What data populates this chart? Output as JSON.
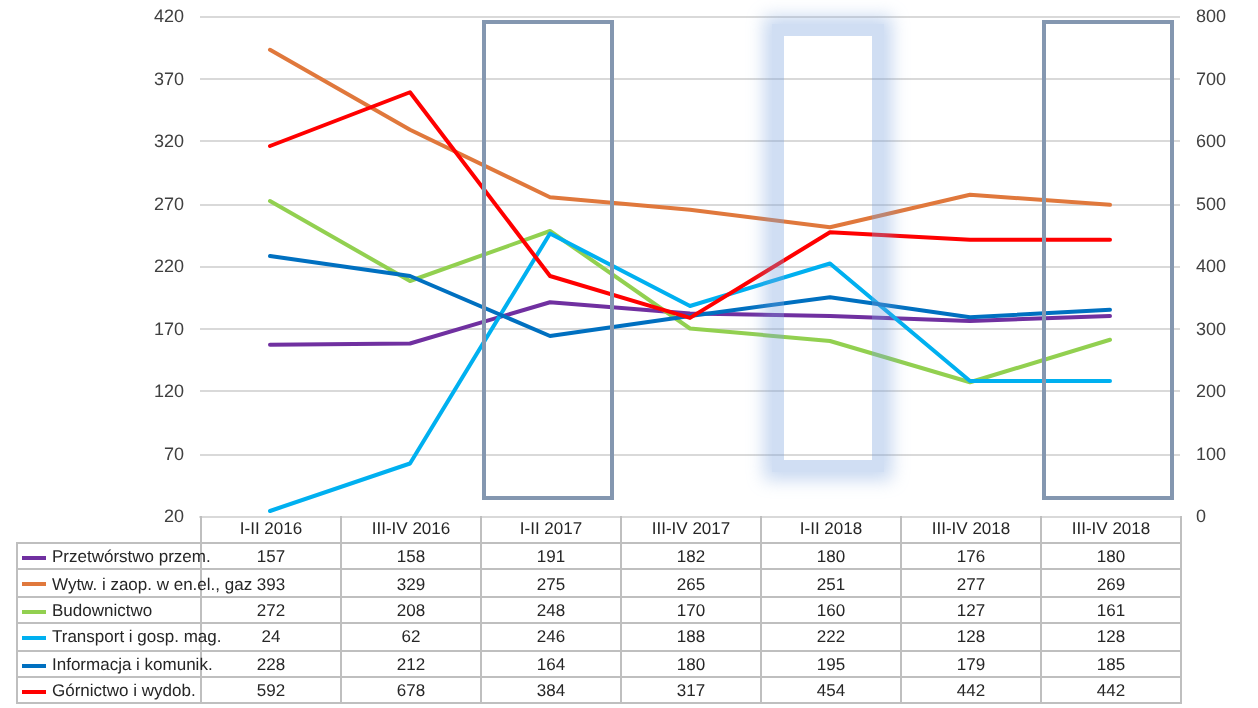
{
  "chart_data": {
    "type": "line",
    "categories": [
      "I-II 2016",
      "III-IV 2016",
      "I-II 2017",
      "III-IV 2017",
      "I-II 2018",
      "III-IV 2018",
      "III-IV 2018"
    ],
    "series": [
      {
        "name": "Przetwórstwo przem.",
        "color": "#7030a0",
        "values": [
          157,
          158,
          191,
          182,
          180,
          176,
          180
        ]
      },
      {
        "name": "Wytw. i zaop. w en.el., gaz",
        "color": "#e0783c",
        "values": [
          393,
          329,
          275,
          265,
          251,
          277,
          269
        ]
      },
      {
        "name": "Budownictwo",
        "color": "#92d050",
        "values": [
          272,
          208,
          248,
          170,
          160,
          127,
          161
        ]
      },
      {
        "name": "Transport i gosp. mag.",
        "color": "#00b0f0",
        "values": [
          24,
          62,
          246,
          188,
          222,
          128,
          128
        ]
      },
      {
        "name": "Informacja i komunik.",
        "color": "#0070c0",
        "values": [
          228,
          212,
          164,
          180,
          195,
          179,
          185
        ]
      },
      {
        "name": "Górnictwo i wydob.",
        "color": "#ff0000",
        "values": [
          592,
          678,
          384,
          317,
          454,
          442,
          442
        ],
        "axis": "y2"
      }
    ],
    "ylim": [
      20,
      420
    ],
    "yticks": [
      20,
      70,
      120,
      170,
      220,
      270,
      320,
      370,
      420
    ],
    "y2lim": [
      0,
      800
    ],
    "y2ticks": [
      0,
      100,
      200,
      300,
      400,
      500,
      600,
      700,
      800
    ],
    "grid": "y",
    "legend": "bottom",
    "data_labels": true,
    "marker": "none",
    "line_style": "solid"
  }
}
